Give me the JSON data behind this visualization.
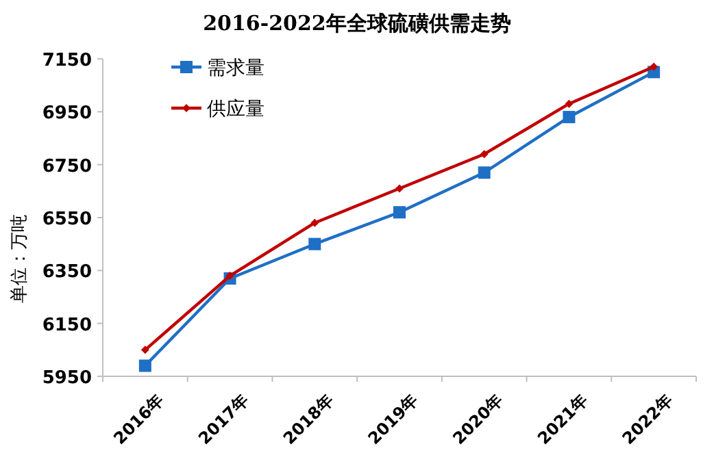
{
  "chart_data": {
    "type": "line",
    "title": "2016-2022年全球硫磺供需走势",
    "ylabel": "单位：万吨",
    "categories": [
      "2016年",
      "2017年",
      "2018年",
      "2019年",
      "2020年",
      "2021年",
      "2022年"
    ],
    "series": [
      {
        "name": "需求量",
        "color": "#1f6fc5",
        "marker": "square",
        "values": [
          5990,
          6320,
          6450,
          6570,
          6720,
          6930,
          7100
        ]
      },
      {
        "name": "供应量",
        "color": "#c00000",
        "marker": "diamond",
        "values": [
          6050,
          6330,
          6530,
          6660,
          6790,
          6980,
          7120
        ]
      }
    ],
    "ylim": [
      5950,
      7150
    ],
    "yticks": [
      5950,
      6150,
      6350,
      6550,
      6750,
      6950,
      7150
    ],
    "legend": "top left",
    "grid": false
  }
}
